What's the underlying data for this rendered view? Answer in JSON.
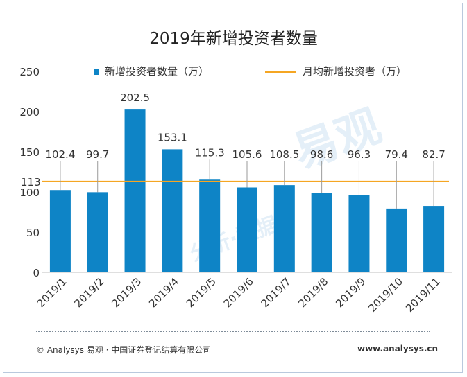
{
  "chart_data": {
    "type": "bar",
    "title": "2019年新增投资者数量",
    "categories": [
      "2019/1",
      "2019/2",
      "2019/3",
      "2019/4",
      "2019/5",
      "2019/6",
      "2019/7",
      "2019/8",
      "2019/9",
      "2019/10",
      "2019/11"
    ],
    "series": [
      {
        "name": "新增投资者数量（万）",
        "type": "bar",
        "color": "#0e84c6",
        "values": [
          102.4,
          99.7,
          202.5,
          153.1,
          115.3,
          105.6,
          108.5,
          98.6,
          96.3,
          79.4,
          82.7
        ]
      },
      {
        "name": "月均新增投资者（万）",
        "type": "line",
        "color": "#f5a623",
        "value": 113,
        "label": "113"
      }
    ],
    "ylim": [
      0,
      250
    ],
    "yticks": [
      0,
      50,
      100,
      150,
      200,
      250
    ],
    "xlabel": "",
    "ylabel": "",
    "legend_position": "top"
  },
  "footer": {
    "source": "© Analysys 易观 · 中国证券登记结算有限公司",
    "website": "www.analysys.cn"
  },
  "watermark": {
    "main": "易观",
    "sub": "分析·数据"
  }
}
